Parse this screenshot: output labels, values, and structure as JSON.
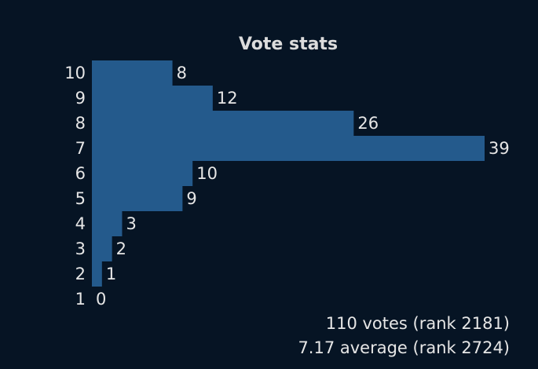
{
  "chart_data": {
    "type": "bar",
    "orientation": "horizontal",
    "title": "Vote stats",
    "categories": [
      "10",
      "9",
      "8",
      "7",
      "6",
      "5",
      "4",
      "3",
      "2",
      "1"
    ],
    "values": [
      8,
      12,
      26,
      39,
      10,
      9,
      3,
      2,
      1,
      0
    ],
    "xlim": [
      0,
      39
    ],
    "bar_color": "#245a8c",
    "grid": false,
    "legend": "none"
  },
  "summary": {
    "votes": "110 votes (rank 2181)",
    "average": "7.17 average (rank 2724)"
  }
}
